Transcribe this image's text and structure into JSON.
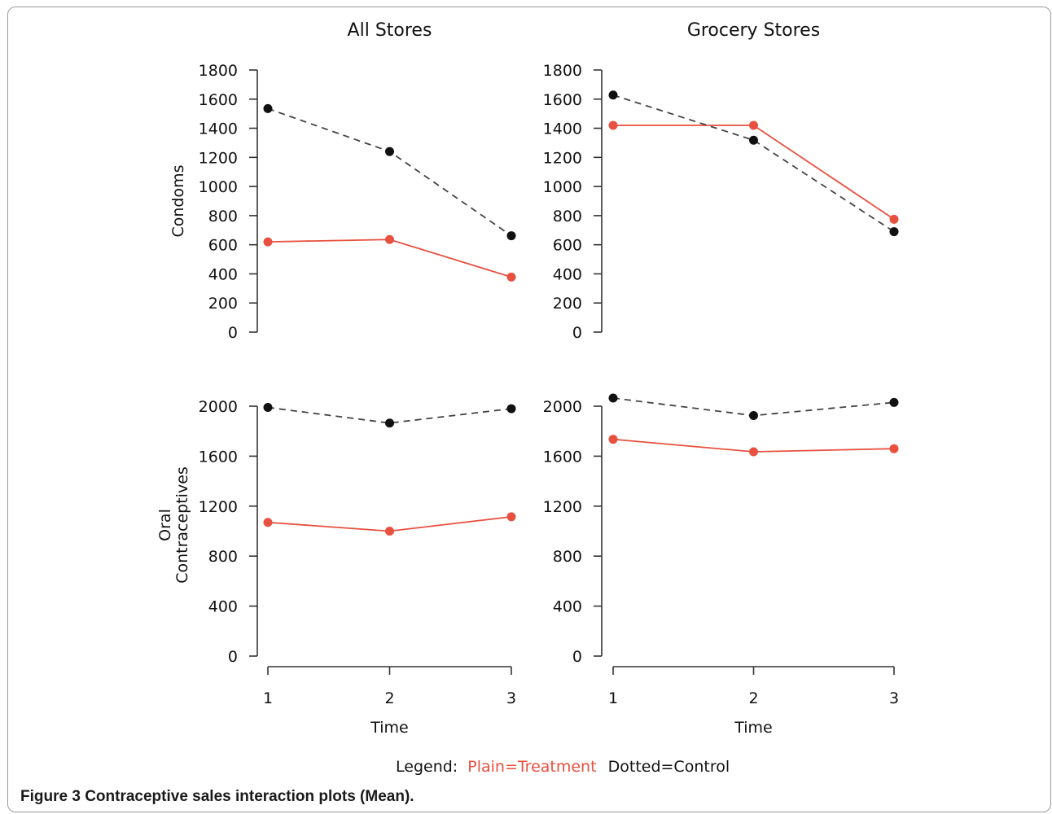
{
  "caption": {
    "label": "Figure 3",
    "text": "Contraceptive sales interaction plots (Mean)."
  },
  "legend": {
    "prefix": "Legend:",
    "treatment": "Plain=Treatment",
    "control": "Dotted=Control",
    "treatment_color": "#e8503f",
    "control_color": "#111111"
  },
  "chart_data": [
    {
      "type": "line",
      "title": "All Stores",
      "ylabel": "Condoms",
      "xlabel": "",
      "x": [
        1,
        2,
        3
      ],
      "yticks": [
        0,
        200,
        400,
        600,
        800,
        1000,
        1200,
        1400,
        1600,
        1800
      ],
      "ylim": [
        0,
        1800
      ],
      "series": [
        {
          "name": "Plain=Treatment",
          "style": "solid",
          "color": "#e8503f",
          "values": [
            620,
            636,
            378
          ]
        },
        {
          "name": "Dotted=Control",
          "style": "dashed",
          "color": "#111111",
          "values": [
            1535,
            1240,
            662
          ]
        }
      ]
    },
    {
      "type": "line",
      "title": "Grocery Stores",
      "ylabel": "",
      "xlabel": "",
      "x": [
        1,
        2,
        3
      ],
      "yticks": [
        0,
        200,
        400,
        600,
        800,
        1000,
        1200,
        1400,
        1600,
        1800
      ],
      "ylim": [
        0,
        1800
      ],
      "series": [
        {
          "name": "Plain=Treatment",
          "style": "solid",
          "color": "#e8503f",
          "values": [
            1420,
            1420,
            775
          ]
        },
        {
          "name": "Dotted=Control",
          "style": "dashed",
          "color": "#111111",
          "values": [
            1628,
            1318,
            690
          ]
        }
      ]
    },
    {
      "type": "line",
      "title": "",
      "ylabel": "Oral Contraceptives",
      "xlabel": "Time",
      "x": [
        1,
        2,
        3
      ],
      "yticks": [
        0,
        400,
        800,
        1200,
        1600,
        2000
      ],
      "ylim": [
        0,
        2000
      ],
      "series": [
        {
          "name": "Plain=Treatment",
          "style": "solid",
          "color": "#e8503f",
          "values": [
            1070,
            1000,
            1115
          ]
        },
        {
          "name": "Dotted=Control",
          "style": "dashed",
          "color": "#111111",
          "values": [
            1990,
            1865,
            1980
          ]
        }
      ]
    },
    {
      "type": "line",
      "title": "",
      "ylabel": "",
      "xlabel": "Time",
      "x": [
        1,
        2,
        3
      ],
      "yticks": [
        0,
        400,
        800,
        1200,
        1600,
        2000
      ],
      "ylim": [
        0,
        2000
      ],
      "series": [
        {
          "name": "Plain=Treatment",
          "style": "solid",
          "color": "#e8503f",
          "values": [
            1735,
            1635,
            1660
          ]
        },
        {
          "name": "Dotted=Control",
          "style": "dashed",
          "color": "#111111",
          "values": [
            2065,
            1925,
            2030
          ]
        }
      ]
    }
  ]
}
